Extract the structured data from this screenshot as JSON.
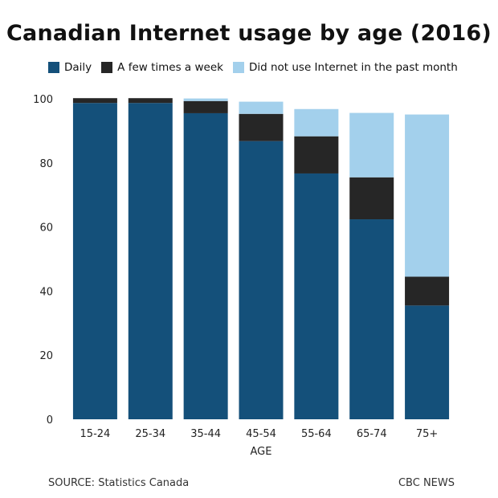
{
  "title": "Canadian Internet usage by age (2016)",
  "legend": [
    {
      "label": "Daily",
      "color": "#14507a"
    },
    {
      "label": "A few times a week",
      "color": "#262626"
    },
    {
      "label": "Did not use Internet in the past month",
      "color": "#a3d0ec"
    }
  ],
  "source": "SOURCE: Statistics Canada",
  "credit": "CBC NEWS",
  "chart_data": {
    "type": "bar",
    "stacked": true,
    "categories": [
      "15-24",
      "25-34",
      "35-44",
      "45-54",
      "55-64",
      "65-74",
      "75+"
    ],
    "series": [
      {
        "name": "Daily",
        "color": "#14507a",
        "values": [
          98.7,
          98.7,
          95.5,
          86.8,
          76.7,
          62.4,
          35.5
        ]
      },
      {
        "name": "A few times a week",
        "color": "#262626",
        "values": [
          1.5,
          1.5,
          3.8,
          8.5,
          11.6,
          13.1,
          9.0
        ]
      },
      {
        "name": "Did not use Internet in the past month",
        "color": "#a3d0ec",
        "values": [
          0.0,
          0.0,
          0.8,
          3.8,
          8.5,
          20.1,
          50.6
        ]
      }
    ],
    "title": "Canadian Internet usage by age (2016)",
    "xlabel": "AGE",
    "ylabel": "",
    "ylim": [
      0,
      100
    ],
    "yticks": [
      0,
      20,
      40,
      60,
      80,
      100
    ],
    "grid": false,
    "legend_position": "top"
  }
}
